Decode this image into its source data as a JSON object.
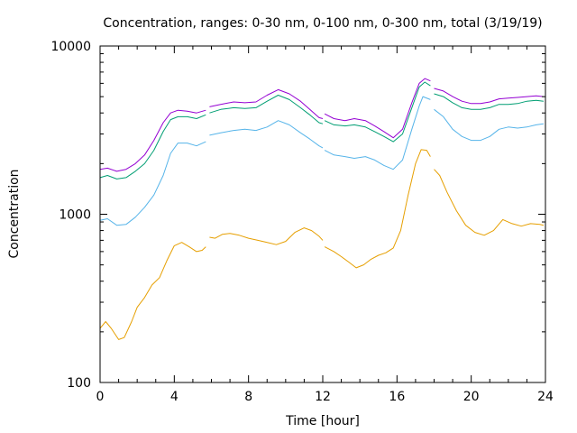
{
  "chart_data": {
    "type": "line",
    "title": "Concentration, ranges: 0-30 nm, 0-100 nm, 0-300 nm, total (3/19/19)",
    "xlabel": "Time [hour]",
    "ylabel": "Concentration",
    "xlim": [
      0,
      24
    ],
    "ylim": [
      100,
      10000
    ],
    "yscale": "log",
    "grid": false,
    "legend": "none",
    "x_ticks": [
      {
        "value": 0,
        "label": "0"
      },
      {
        "value": 4,
        "label": "4"
      },
      {
        "value": 8,
        "label": "8"
      },
      {
        "value": 12,
        "label": "12"
      },
      {
        "value": 16,
        "label": "16"
      },
      {
        "value": 20,
        "label": "20"
      },
      {
        "value": 24,
        "label": "24"
      }
    ],
    "y_ticks": [
      {
        "value": 100,
        "label": "100"
      },
      {
        "value": 1000,
        "label": "1000"
      },
      {
        "value": 10000,
        "label": "10000"
      }
    ],
    "series": [
      {
        "color": "#e69f00",
        "segments": [
          [
            [
              0,
              210
            ],
            [
              0.3,
              230
            ],
            [
              0.6,
              210
            ],
            [
              1,
              180
            ],
            [
              1.3,
              185
            ],
            [
              1.7,
              230
            ],
            [
              2,
              280
            ],
            [
              2.4,
              320
            ],
            [
              2.8,
              380
            ],
            [
              3.2,
              420
            ],
            [
              3.6,
              530
            ],
            [
              4,
              650
            ],
            [
              4.4,
              680
            ],
            [
              4.8,
              640
            ],
            [
              5.2,
              600
            ],
            [
              5.5,
              610
            ],
            [
              5.7,
              640
            ]
          ],
          [
            [
              5.9,
              730
            ],
            [
              6.2,
              720
            ],
            [
              6.6,
              760
            ],
            [
              7,
              770
            ],
            [
              7.5,
              750
            ],
            [
              8,
              720
            ],
            [
              8.5,
              700
            ],
            [
              9,
              680
            ],
            [
              9.5,
              660
            ],
            [
              10,
              690
            ],
            [
              10.5,
              780
            ],
            [
              11,
              830
            ],
            [
              11.4,
              800
            ],
            [
              11.8,
              740
            ],
            [
              12,
              700
            ]
          ],
          [
            [
              12.1,
              640
            ],
            [
              12.6,
              600
            ],
            [
              13,
              560
            ],
            [
              13.4,
              520
            ],
            [
              13.8,
              480
            ],
            [
              14.2,
              500
            ],
            [
              14.6,
              540
            ],
            [
              15,
              570
            ],
            [
              15.4,
              590
            ],
            [
              15.8,
              630
            ],
            [
              16.2,
              800
            ],
            [
              16.6,
              1300
            ],
            [
              17,
              2000
            ],
            [
              17.3,
              2420
            ],
            [
              17.6,
              2400
            ],
            [
              17.8,
              2200
            ]
          ],
          [
            [
              18,
              1850
            ],
            [
              18.3,
              1700
            ],
            [
              18.7,
              1350
            ],
            [
              19.2,
              1050
            ],
            [
              19.7,
              860
            ],
            [
              20.2,
              780
            ],
            [
              20.7,
              750
            ],
            [
              21.2,
              800
            ],
            [
              21.7,
              930
            ],
            [
              22.2,
              880
            ],
            [
              22.7,
              850
            ],
            [
              23.2,
              880
            ],
            [
              23.7,
              870
            ],
            [
              23.9,
              860
            ]
          ]
        ]
      },
      {
        "color": "#56b4e9",
        "segments": [
          [
            [
              0,
              920
            ],
            [
              0.4,
              940
            ],
            [
              0.9,
              860
            ],
            [
              1.4,
              870
            ],
            [
              1.9,
              960
            ],
            [
              2.4,
              1100
            ],
            [
              2.9,
              1300
            ],
            [
              3.4,
              1700
            ],
            [
              3.8,
              2300
            ],
            [
              4.2,
              2650
            ],
            [
              4.7,
              2650
            ],
            [
              5.2,
              2550
            ],
            [
              5.7,
              2700
            ]
          ],
          [
            [
              5.9,
              2950
            ],
            [
              6.5,
              3050
            ],
            [
              7.2,
              3150
            ],
            [
              7.8,
              3200
            ],
            [
              8.4,
              3150
            ],
            [
              9,
              3300
            ],
            [
              9.6,
              3600
            ],
            [
              10.2,
              3400
            ],
            [
              10.8,
              3050
            ],
            [
              11.3,
              2800
            ],
            [
              11.8,
              2550
            ],
            [
              12,
              2480
            ]
          ],
          [
            [
              12.1,
              2400
            ],
            [
              12.6,
              2250
            ],
            [
              13.2,
              2200
            ],
            [
              13.7,
              2150
            ],
            [
              14.3,
              2200
            ],
            [
              14.8,
              2100
            ],
            [
              15.3,
              1950
            ],
            [
              15.8,
              1850
            ],
            [
              16.3,
              2100
            ],
            [
              16.8,
              3200
            ],
            [
              17.2,
              4400
            ],
            [
              17.4,
              5000
            ],
            [
              17.8,
              4800
            ]
          ],
          [
            [
              18,
              4200
            ],
            [
              18.5,
              3800
            ],
            [
              19,
              3200
            ],
            [
              19.5,
              2900
            ],
            [
              20,
              2750
            ],
            [
              20.5,
              2750
            ],
            [
              21,
              2900
            ],
            [
              21.5,
              3200
            ],
            [
              22,
              3300
            ],
            [
              22.5,
              3250
            ],
            [
              23,
              3300
            ],
            [
              23.5,
              3400
            ],
            [
              23.9,
              3450
            ]
          ]
        ]
      },
      {
        "color": "#009e73",
        "segments": [
          [
            [
              0,
              1650
            ],
            [
              0.4,
              1700
            ],
            [
              0.9,
              1620
            ],
            [
              1.4,
              1650
            ],
            [
              1.9,
              1800
            ],
            [
              2.4,
              2000
            ],
            [
              2.9,
              2400
            ],
            [
              3.4,
              3100
            ],
            [
              3.8,
              3650
            ],
            [
              4.2,
              3800
            ],
            [
              4.7,
              3800
            ],
            [
              5.2,
              3700
            ],
            [
              5.7,
              3900
            ]
          ],
          [
            [
              5.9,
              4000
            ],
            [
              6.5,
              4200
            ],
            [
              7.2,
              4300
            ],
            [
              7.8,
              4250
            ],
            [
              8.4,
              4300
            ],
            [
              9,
              4700
            ],
            [
              9.6,
              5100
            ],
            [
              10.2,
              4800
            ],
            [
              10.8,
              4300
            ],
            [
              11.3,
              3900
            ],
            [
              11.8,
              3500
            ],
            [
              12,
              3450
            ]
          ],
          [
            [
              12.1,
              3600
            ],
            [
              12.6,
              3400
            ],
            [
              13.2,
              3350
            ],
            [
              13.7,
              3400
            ],
            [
              14.3,
              3300
            ],
            [
              14.8,
              3100
            ],
            [
              15.3,
              2900
            ],
            [
              15.8,
              2700
            ],
            [
              16.3,
              3000
            ],
            [
              16.8,
              4300
            ],
            [
              17.2,
              5700
            ],
            [
              17.5,
              6100
            ],
            [
              17.8,
              5800
            ]
          ],
          [
            [
              18,
              5200
            ],
            [
              18.5,
              5000
            ],
            [
              19,
              4600
            ],
            [
              19.5,
              4300
            ],
            [
              20,
              4200
            ],
            [
              20.5,
              4200
            ],
            [
              21,
              4300
            ],
            [
              21.5,
              4500
            ],
            [
              22,
              4500
            ],
            [
              22.5,
              4550
            ],
            [
              23,
              4700
            ],
            [
              23.5,
              4750
            ],
            [
              23.9,
              4700
            ]
          ]
        ]
      },
      {
        "color": "#9400d3",
        "segments": [
          [
            [
              0,
              1850
            ],
            [
              0.4,
              1880
            ],
            [
              0.9,
              1800
            ],
            [
              1.4,
              1850
            ],
            [
              1.9,
              2000
            ],
            [
              2.4,
              2250
            ],
            [
              2.9,
              2750
            ],
            [
              3.4,
              3500
            ],
            [
              3.8,
              4000
            ],
            [
              4.2,
              4150
            ],
            [
              4.7,
              4100
            ],
            [
              5.2,
              4000
            ],
            [
              5.7,
              4150
            ]
          ],
          [
            [
              5.9,
              4350
            ],
            [
              6.5,
              4500
            ],
            [
              7.2,
              4650
            ],
            [
              7.8,
              4600
            ],
            [
              8.4,
              4650
            ],
            [
              9,
              5100
            ],
            [
              9.6,
              5500
            ],
            [
              10.2,
              5200
            ],
            [
              10.8,
              4700
            ],
            [
              11.3,
              4200
            ],
            [
              11.8,
              3750
            ],
            [
              12,
              3700
            ]
          ],
          [
            [
              12.1,
              3950
            ],
            [
              12.6,
              3700
            ],
            [
              13.2,
              3600
            ],
            [
              13.7,
              3700
            ],
            [
              14.3,
              3600
            ],
            [
              14.8,
              3350
            ],
            [
              15.3,
              3100
            ],
            [
              15.8,
              2850
            ],
            [
              16.3,
              3200
            ],
            [
              16.8,
              4600
            ],
            [
              17.2,
              6000
            ],
            [
              17.5,
              6400
            ],
            [
              17.8,
              6200
            ]
          ],
          [
            [
              18,
              5600
            ],
            [
              18.5,
              5400
            ],
            [
              19,
              5000
            ],
            [
              19.5,
              4700
            ],
            [
              20,
              4550
            ],
            [
              20.5,
              4550
            ],
            [
              21,
              4650
            ],
            [
              21.5,
              4850
            ],
            [
              22,
              4900
            ],
            [
              22.5,
              4950
            ],
            [
              23,
              5000
            ],
            [
              23.5,
              5050
            ],
            [
              23.9,
              5000
            ]
          ]
        ]
      }
    ]
  }
}
